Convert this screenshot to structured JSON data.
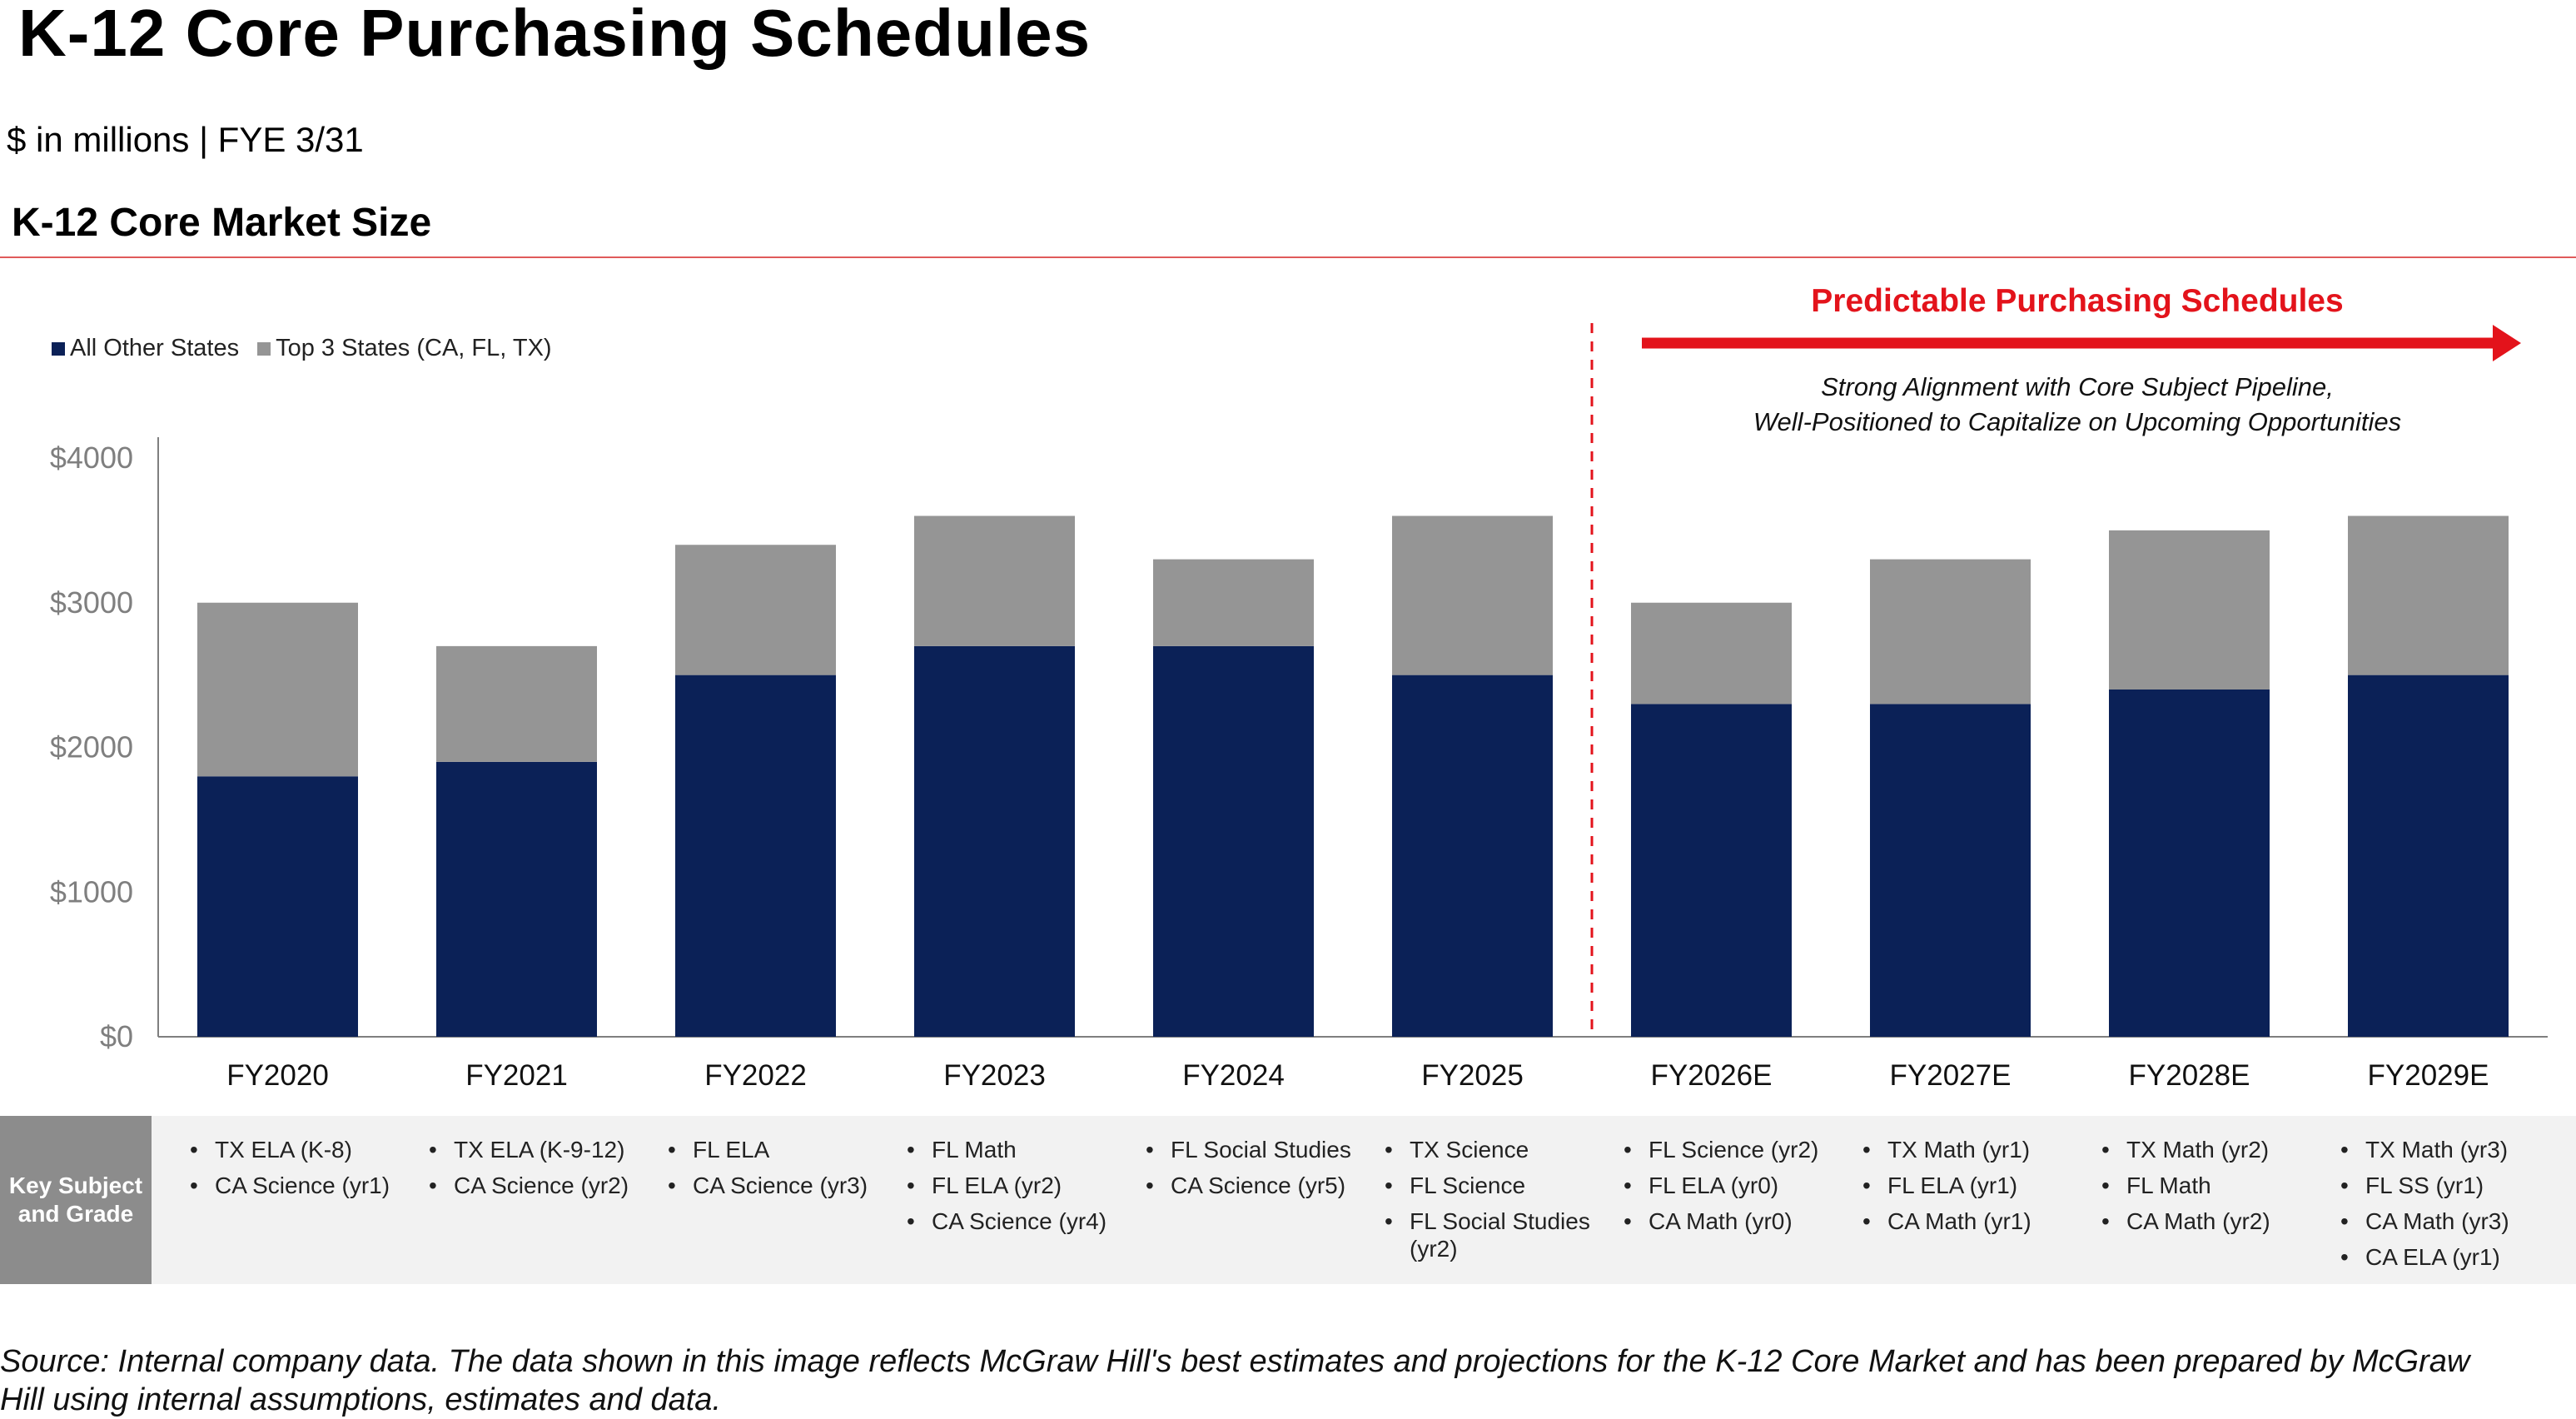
{
  "header": {
    "title": "K-12 Core Purchasing Schedules",
    "subtitle": "$ in millions | FYE 3/31",
    "section_title": "K-12 Core Market Size"
  },
  "colors": {
    "all_other": "#0b2157",
    "top3": "#959595",
    "accent_red": "#e3131b",
    "axis": "#7f7f7f",
    "label_band": "#8c8c8c",
    "band": "#f2f2f2"
  },
  "callout": {
    "title": "Predictable Purchasing Schedules",
    "text_line1": "Strong Alignment with Core Subject Pipeline,",
    "text_line2": "Well-Positioned to Capitalize on Upcoming Opportunities"
  },
  "chart_data": {
    "type": "bar",
    "stacked": true,
    "title": "K-12 Core Market Size",
    "xlabel": "",
    "ylabel": "",
    "ylim": [
      0,
      4000
    ],
    "yticks": [
      0,
      1000,
      2000,
      3000,
      4000
    ],
    "ytick_labels": [
      "$0",
      "$1000",
      "$2000",
      "$3000",
      "$4000"
    ],
    "categories": [
      "FY2020",
      "FY2021",
      "FY2022",
      "FY2023",
      "FY2024",
      "FY2025",
      "FY2026E",
      "FY2027E",
      "FY2028E",
      "FY2029E"
    ],
    "series": [
      {
        "name": "All Other States",
        "values": [
          1800,
          1900,
          2500,
          2700,
          2700,
          2500,
          2300,
          2300,
          2400,
          2500
        ]
      },
      {
        "name": "Top 3 States (CA, FL, TX)",
        "values": [
          1200,
          800,
          900,
          900,
          600,
          1100,
          700,
          1000,
          1100,
          1100
        ]
      }
    ],
    "projection_start_index": 6,
    "legend": "top-left"
  },
  "key_subjects": {
    "label": "Key Subject and Grade",
    "columns": [
      [
        "TX ELA (K-8)",
        "CA Science (yr1)"
      ],
      [
        "TX ELA (K-9-12)",
        "CA Science (yr2)"
      ],
      [
        "FL ELA",
        "CA Science (yr3)"
      ],
      [
        "FL Math",
        "FL ELA (yr2)",
        "CA Science (yr4)"
      ],
      [
        "FL Social Studies",
        "CA Science (yr5)"
      ],
      [
        "TX Science",
        "FL Science",
        "FL Social Studies (yr2)"
      ],
      [
        "FL Science (yr2)",
        "FL ELA (yr0)",
        "CA Math (yr0)"
      ],
      [
        "TX Math (yr1)",
        "FL ELA (yr1)",
        "CA Math (yr1)"
      ],
      [
        "TX Math (yr2)",
        "FL Math",
        "CA Math (yr2)"
      ],
      [
        "TX Math (yr3)",
        "FL SS (yr1)",
        "CA Math (yr3)",
        "CA ELA (yr1)"
      ]
    ]
  },
  "footer": {
    "source": "Source: Internal company data. The data shown in this image reflects McGraw Hill's best estimates and projections for the K-12 Core Market and has been prepared by McGraw Hill using internal assumptions, estimates and data."
  }
}
